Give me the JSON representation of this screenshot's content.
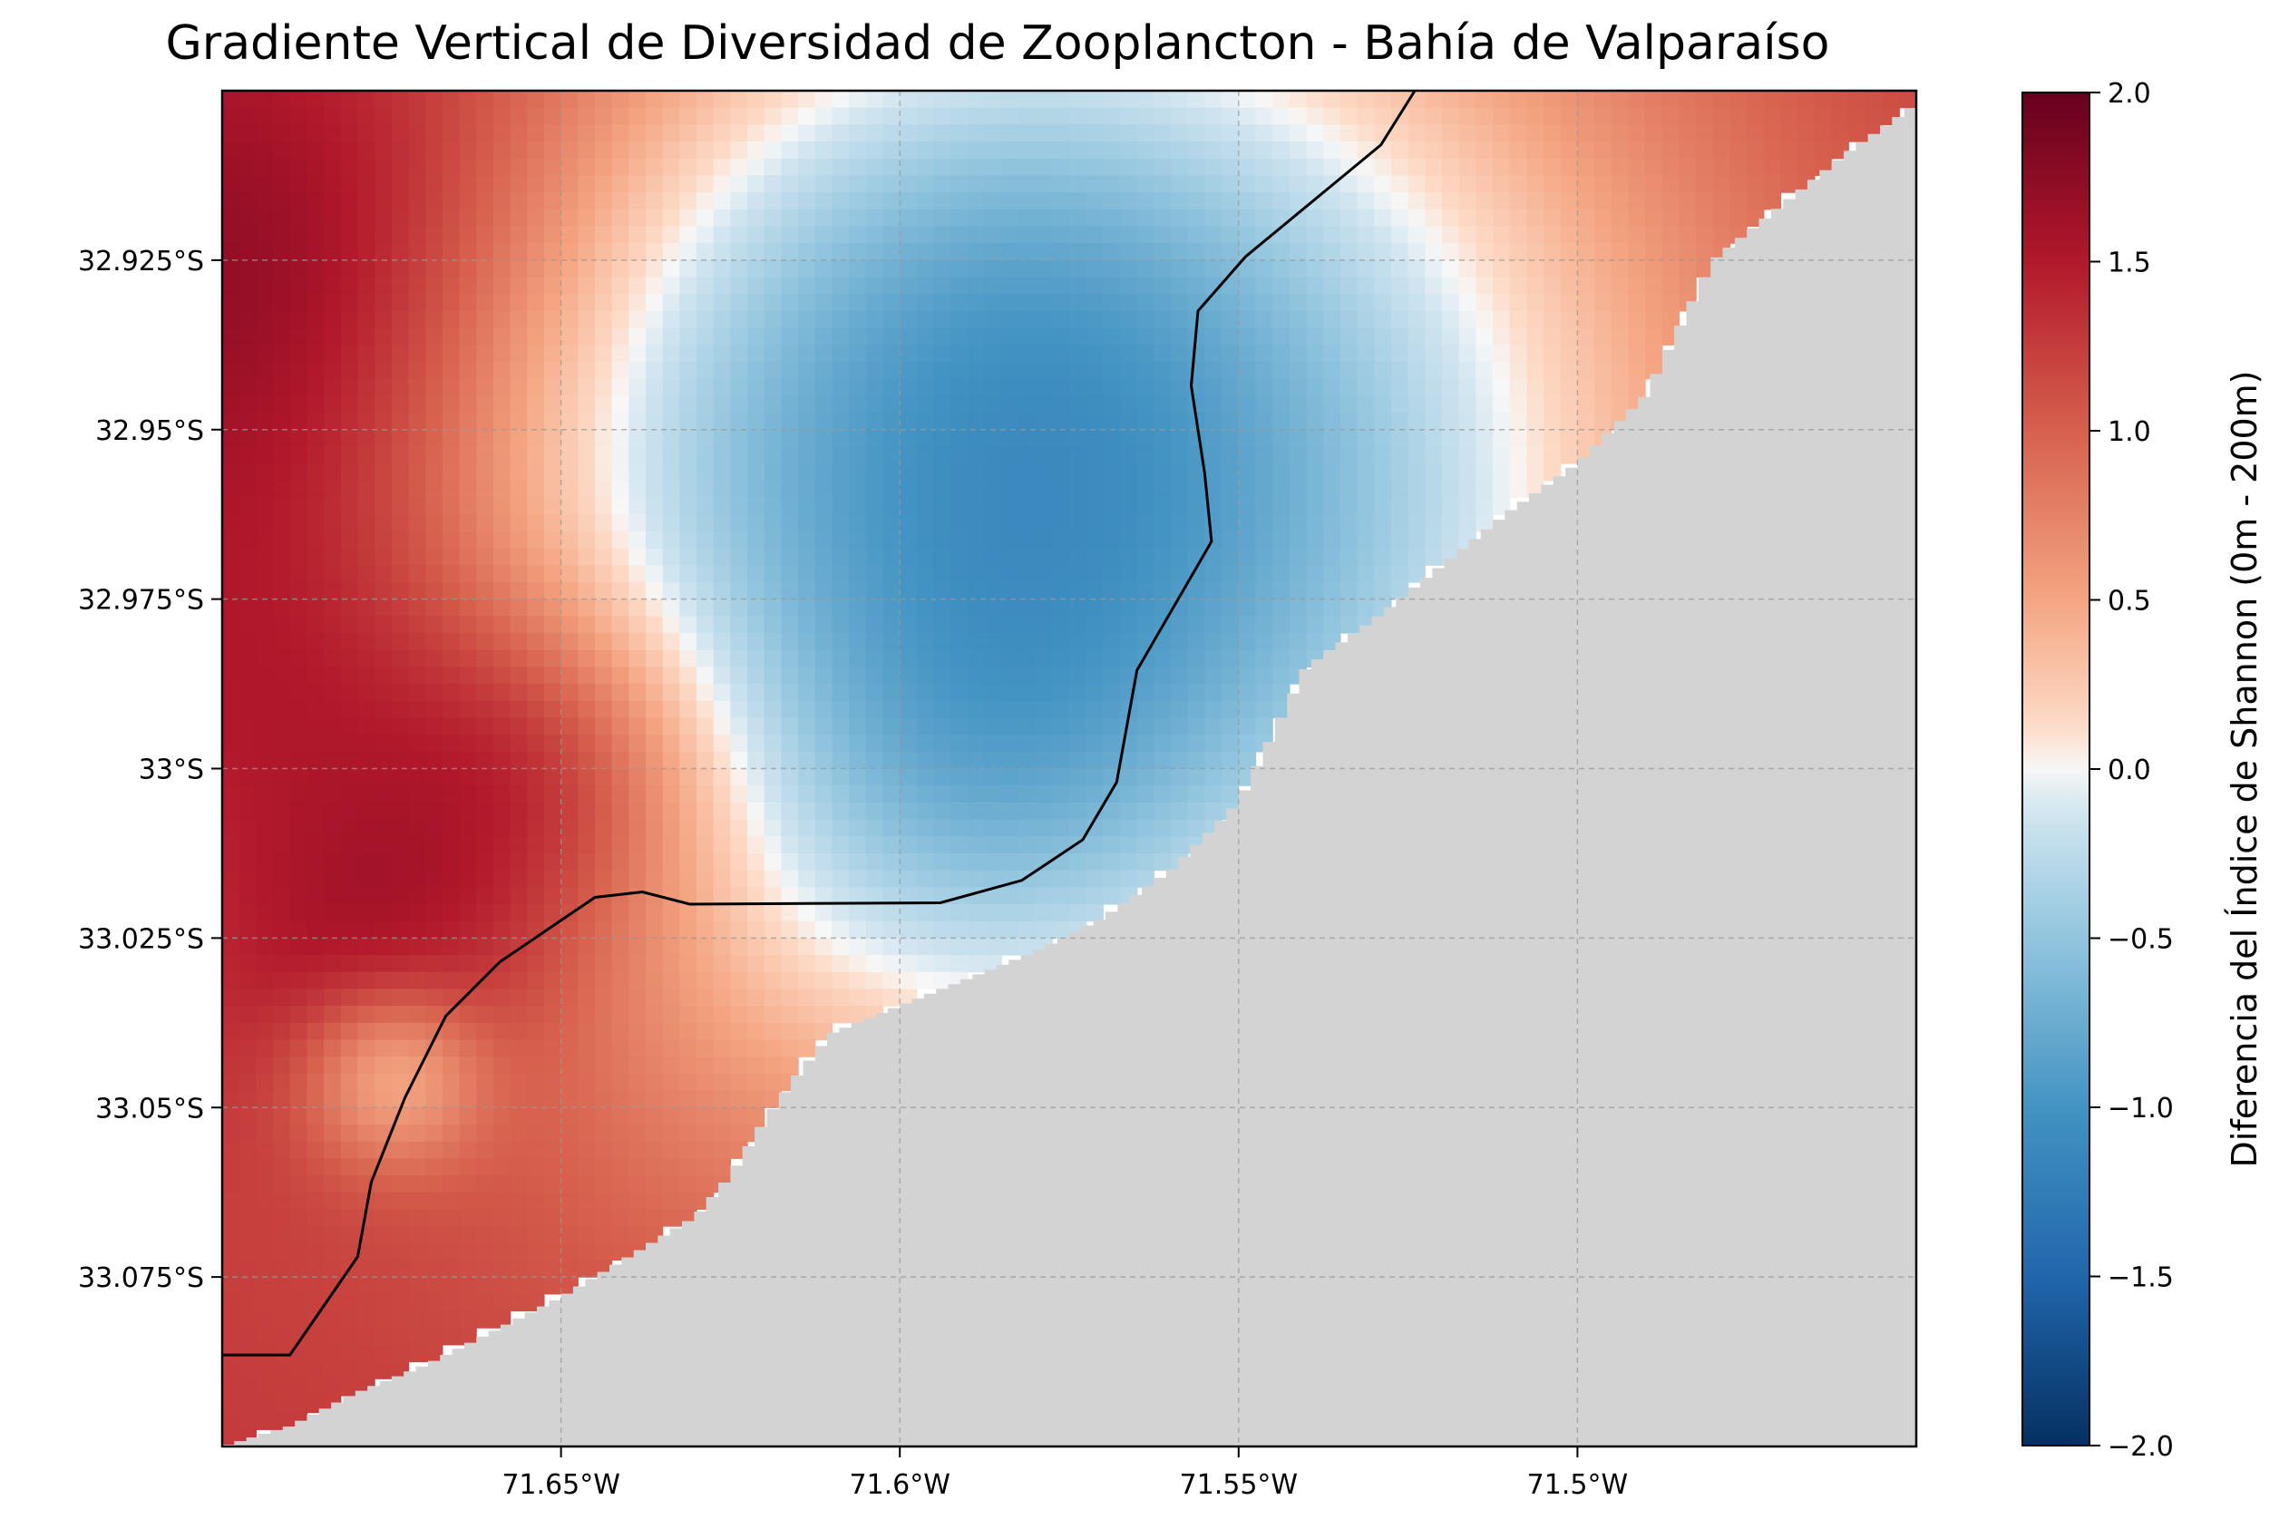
{
  "chart_data": {
    "type": "heatmap",
    "title": "Gradiente Vertical de Diversidad de Zooplancton - Bahía de Valparaíso",
    "colorbar_label": "Diferencia del Índice de Shannon (0m - 200m)",
    "colormap": "RdBu_r",
    "colorbar_range": [
      -2.0,
      2.0
    ],
    "colorbar_ticks": [
      "2.0",
      "1.5",
      "1.0",
      "0.5",
      "0.0",
      "−0.5",
      "−1.0",
      "−1.5",
      "−2.0"
    ],
    "colorbar_tick_values": [
      2.0,
      1.5,
      1.0,
      0.5,
      0.0,
      -0.5,
      -1.0,
      -1.5,
      -2.0
    ],
    "x_ticks": [
      "71.65°W",
      "71.6°W",
      "71.55°W",
      "71.5°W"
    ],
    "x_tick_values": [
      -71.65,
      -71.6,
      -71.55,
      -71.5
    ],
    "y_ticks": [
      "32.925°S",
      "32.95°S",
      "32.975°S",
      "33°S",
      "33.025°S",
      "33.05°S",
      "33.075°S"
    ],
    "y_tick_values": [
      -32.925,
      -32.95,
      -32.975,
      -33.0,
      -33.025,
      -33.05,
      -33.075
    ],
    "xlim": [
      -71.7,
      -71.45
    ],
    "ylim": [
      -33.1,
      -32.9
    ],
    "grid": true,
    "land_color": "#d3d3d3",
    "contour_line_color": "#000000",
    "coastline": [
      [
        -71.7,
        -33.1
      ],
      [
        -71.69,
        -33.097
      ],
      [
        -71.68,
        -33.092
      ],
      [
        -71.67,
        -33.088
      ],
      [
        -71.66,
        -33.083
      ],
      [
        -71.65,
        -33.078
      ],
      [
        -71.64,
        -33.072
      ],
      [
        -71.63,
        -33.066
      ],
      [
        -71.625,
        -33.06
      ],
      [
        -71.62,
        -33.052
      ],
      [
        -71.615,
        -33.045
      ],
      [
        -71.61,
        -33.039
      ],
      [
        -71.6,
        -33.035
      ],
      [
        -71.59,
        -33.031
      ],
      [
        -71.58,
        -33.027
      ],
      [
        -71.57,
        -33.022
      ],
      [
        -71.56,
        -33.015
      ],
      [
        -71.55,
        -33.005
      ],
      [
        -71.545,
        -32.995
      ],
      [
        -71.54,
        -32.985
      ],
      [
        -71.53,
        -32.978
      ],
      [
        -71.52,
        -32.97
      ],
      [
        -71.51,
        -32.962
      ],
      [
        -71.5,
        -32.955
      ],
      [
        -71.49,
        -32.945
      ],
      [
        -71.485,
        -32.935
      ],
      [
        -71.48,
        -32.925
      ],
      [
        -71.47,
        -32.917
      ],
      [
        -71.46,
        -32.909
      ],
      [
        -71.45,
        -32.902
      ]
    ],
    "contour_0_5": [
      [
        -71.7,
        -33.0865
      ],
      [
        -71.69,
        -33.0865
      ],
      [
        -71.68,
        -33.072
      ],
      [
        -71.678,
        -33.061
      ],
      [
        -71.673,
        -33.0485
      ],
      [
        -71.667,
        -33.0365
      ],
      [
        -71.659,
        -33.0285
      ],
      [
        -71.645,
        -33.019
      ],
      [
        -71.638,
        -33.0182
      ],
      [
        -71.631,
        -33.02
      ],
      [
        -71.594,
        -33.0198
      ],
      [
        -71.582,
        -33.0165
      ],
      [
        -71.573,
        -33.0105
      ],
      [
        -71.568,
        -33.002
      ],
      [
        -71.565,
        -32.9855
      ],
      [
        -71.554,
        -32.9665
      ],
      [
        -71.555,
        -32.9565
      ],
      [
        -71.557,
        -32.9435
      ],
      [
        -71.556,
        -32.9325
      ],
      [
        -71.549,
        -32.9245
      ],
      [
        -71.529,
        -32.908
      ],
      [
        -71.524,
        -32.9
      ]
    ],
    "field_base": 1.3,
    "field_features": [
      {
        "lon": -71.69,
        "lat": -32.93,
        "value": 0.7,
        "spread": 0.03
      },
      {
        "lon": -71.685,
        "lat": -32.99,
        "value": 0.5,
        "spread": 0.025
      },
      {
        "lon": -71.65,
        "lat": -33.0,
        "value": 0.7,
        "spread": 0.018
      },
      {
        "lon": -71.675,
        "lat": -33.032,
        "value": 0.5,
        "spread": 0.018
      },
      {
        "lon": -71.6,
        "lat": -32.98,
        "value": -1.1,
        "spread": 0.06
      },
      {
        "lon": -71.55,
        "lat": -32.97,
        "value": -0.9,
        "spread": 0.05
      },
      {
        "lon": -71.59,
        "lat": -32.92,
        "value": -0.6,
        "spread": 0.035
      },
      {
        "lon": -71.675,
        "lat": -33.045,
        "value": -0.9,
        "spread": 0.01
      },
      {
        "lon": -71.64,
        "lat": -32.95,
        "value": -0.4,
        "spread": 0.035
      },
      {
        "lon": -71.535,
        "lat": -32.925,
        "value": -0.45,
        "spread": 0.05
      },
      {
        "lon": -71.59,
        "lat": -33.005,
        "value": -0.4,
        "spread": 0.025
      }
    ]
  }
}
